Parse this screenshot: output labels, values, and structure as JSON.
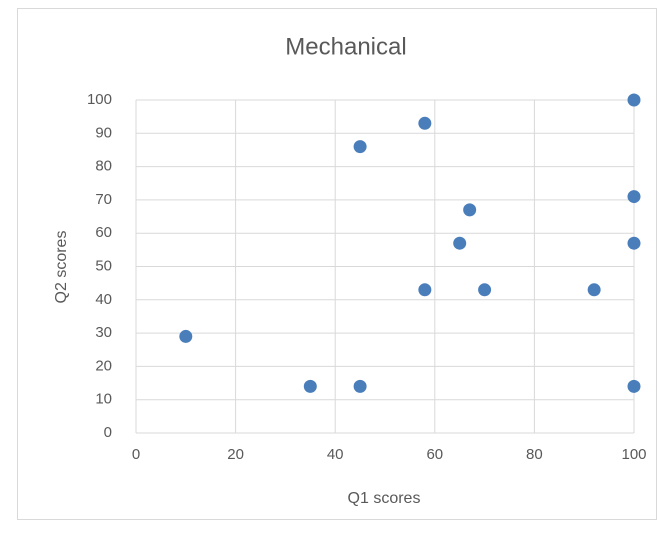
{
  "chart_data": {
    "type": "scatter",
    "title": "Mechanical",
    "x_label": "Q1 scores",
    "y_label": "Q2 scores",
    "series": [
      {
        "name": "Q2 scores",
        "color": "#4a7ebb",
        "x": [
          10,
          35,
          45,
          45,
          58,
          58,
          65,
          67,
          70,
          92,
          100,
          100,
          100,
          100
        ],
        "values": [
          29,
          14,
          14,
          86,
          93,
          43,
          57,
          67,
          43,
          43,
          100,
          71,
          57,
          14
        ]
      }
    ],
    "xlim": [
      0,
      100
    ],
    "xticks": [
      0,
      20,
      40,
      60,
      80,
      100
    ],
    "ylim": [
      0,
      100
    ],
    "yticks": [
      0,
      10,
      20,
      30,
      40,
      50,
      60,
      70,
      80,
      90,
      100
    ],
    "grid": true
  }
}
